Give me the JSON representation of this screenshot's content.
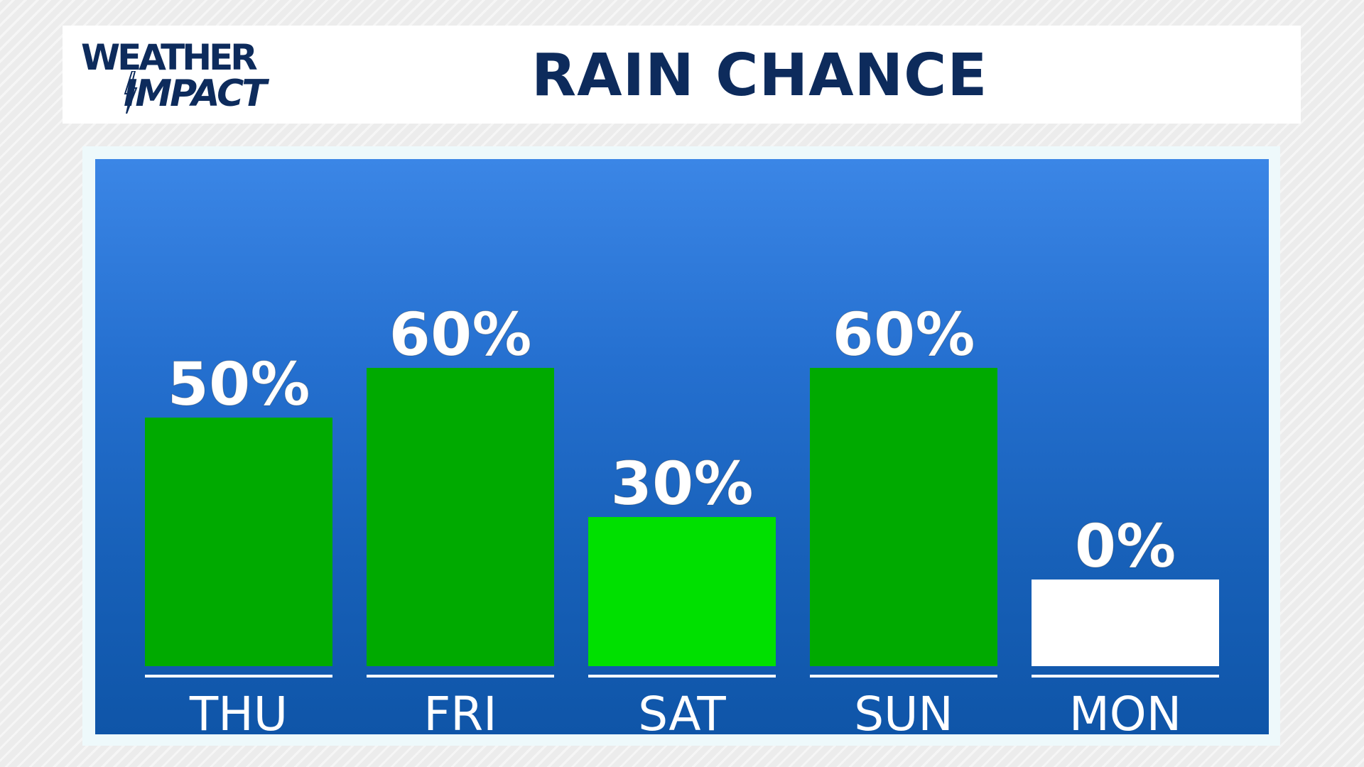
{
  "brand": {
    "logo_text_line1": "WEATHER",
    "logo_text_line2": "IMPACT",
    "logo_color": "#0d2b5c"
  },
  "header": {
    "title": "RAIN CHANCE"
  },
  "colors": {
    "panel_top": "#3b86e6",
    "panel_bottom": "#0f55a8",
    "bar_dark_green": "#00aa00",
    "bar_bright_green": "#00e000",
    "bar_zero": "#ffffff",
    "text": "#ffffff"
  },
  "chart_data": {
    "type": "bar",
    "title": "RAIN CHANCE",
    "xlabel": "",
    "ylabel": "",
    "ylim": [
      0,
      100
    ],
    "categories": [
      "THU",
      "FRI",
      "SAT",
      "SUN",
      "MON"
    ],
    "values": [
      50,
      60,
      30,
      60,
      0
    ],
    "value_labels": [
      "50%",
      "60%",
      "30%",
      "60%",
      "0%"
    ],
    "bar_colors": [
      "#00aa00",
      "#00aa00",
      "#00e000",
      "#00aa00",
      "#ffffff"
    ],
    "grid": false,
    "legend": "none"
  }
}
